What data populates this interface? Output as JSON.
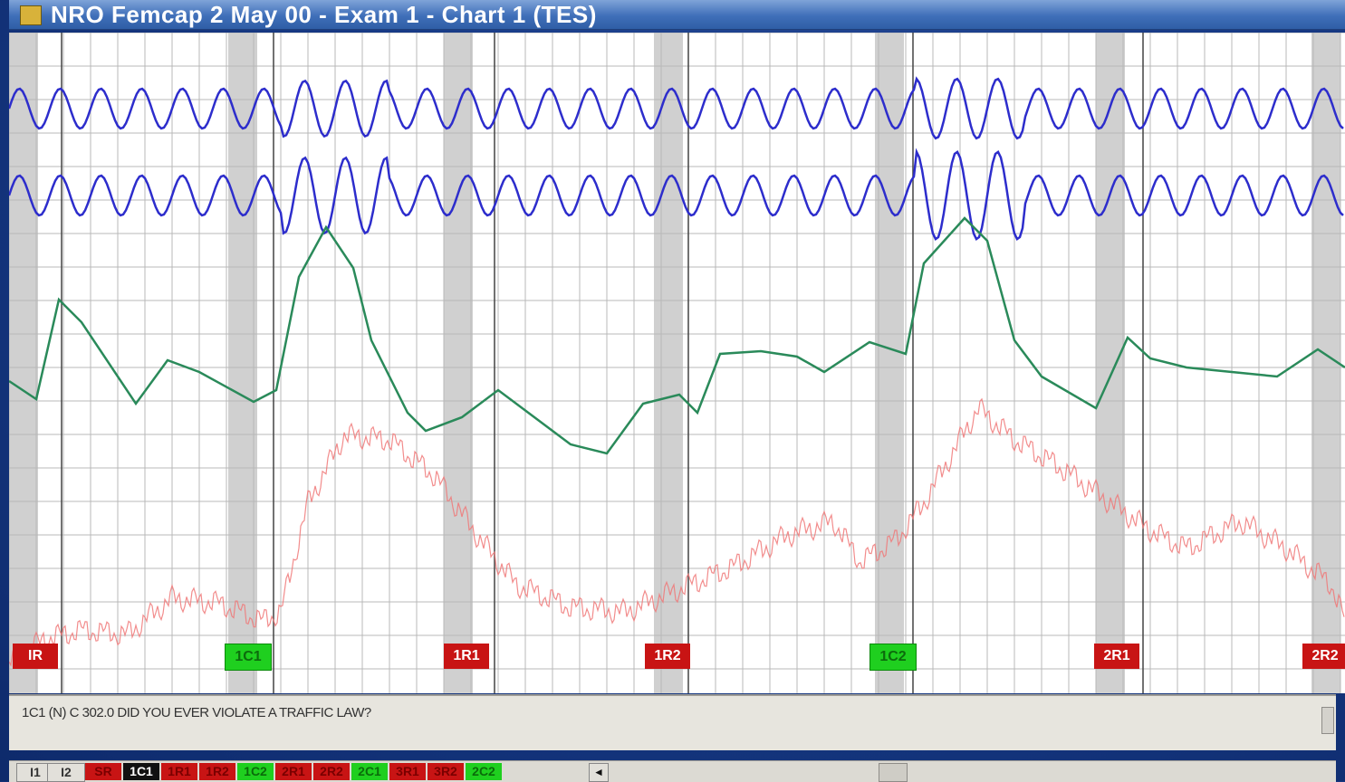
{
  "window": {
    "title": "NRO Femcap 2 May 00 - Exam 1 - Chart 1 (TES)"
  },
  "chart": {
    "markers": [
      {
        "label": "IR",
        "kind": "relevant"
      },
      {
        "label": "1C1",
        "kind": "comparison"
      },
      {
        "label": "1R1",
        "kind": "relevant"
      },
      {
        "label": "1R2",
        "kind": "relevant"
      },
      {
        "label": "1C2",
        "kind": "comparison"
      },
      {
        "label": "2R1",
        "kind": "relevant"
      },
      {
        "label": "2R2",
        "kind": "relevant"
      }
    ],
    "colors": {
      "respiration": "#2d2dcc",
      "eda": "#2a8a5a",
      "cardio": "#f07878",
      "relevant_marker": "#c81414",
      "comparison_marker": "#1fcf1f"
    }
  },
  "info": {
    "question_text": "1C1 (N) C 302.0  DID YOU EVER VIOLATE A TRAFFIC LAW?"
  },
  "tabs": [
    {
      "label": "I1",
      "kind": "gray"
    },
    {
      "label": "I2",
      "kind": "gray"
    },
    {
      "label": "SR",
      "kind": "red"
    },
    {
      "label": "1C1",
      "kind": "black"
    },
    {
      "label": "1R1",
      "kind": "red"
    },
    {
      "label": "1R2",
      "kind": "red"
    },
    {
      "label": "1C2",
      "kind": "green"
    },
    {
      "label": "2R1",
      "kind": "red"
    },
    {
      "label": "2R2",
      "kind": "red"
    },
    {
      "label": "2C1",
      "kind": "green"
    },
    {
      "label": "3R1",
      "kind": "red"
    },
    {
      "label": "3R2",
      "kind": "red"
    },
    {
      "label": "2C2",
      "kind": "green"
    }
  ],
  "nav": {
    "left_arrow": "◄"
  }
}
